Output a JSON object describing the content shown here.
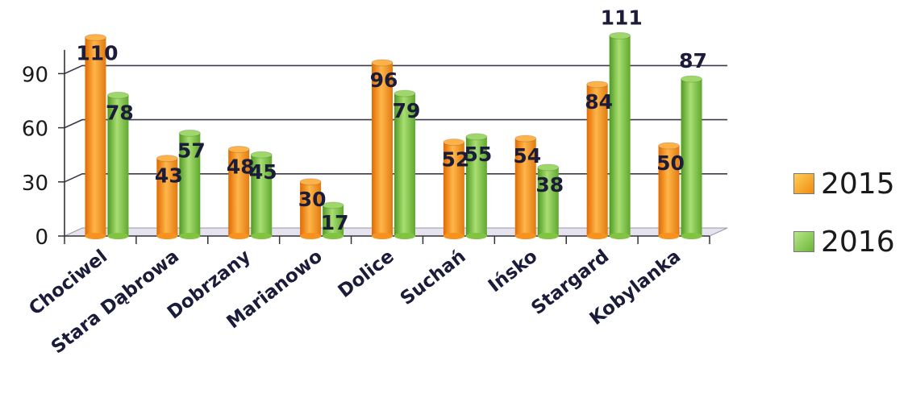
{
  "chart_data": {
    "type": "bar",
    "categories": [
      "Chociwel",
      "Stara Dąbrowa",
      "Dobrzany",
      "Marianowo",
      "Dolice",
      "Suchań",
      "Ińsko",
      "Stargard",
      "Kobylanka"
    ],
    "series": [
      {
        "name": "2015",
        "values": [
          110,
          43,
          48,
          30,
          96,
          52,
          54,
          84,
          50
        ],
        "color": "#f7921e"
      },
      {
        "name": "2016",
        "values": [
          78,
          57,
          45,
          17,
          79,
          55,
          38,
          111,
          87
        ],
        "color": "#82c341"
      }
    ],
    "yticks": [
      "0",
      "30",
      "60",
      "90"
    ],
    "ylim": [
      0,
      120
    ],
    "grid": true,
    "legend_position": "right"
  }
}
